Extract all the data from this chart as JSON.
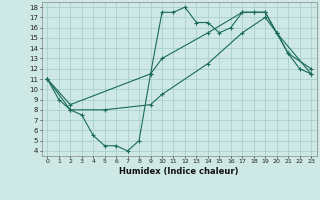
{
  "bg_color": "#cde8e5",
  "grid_color": "#aacfcc",
  "line_color": "#1a6b5a",
  "xlabel": "Humidex (Indice chaleur)",
  "xlim": [
    -0.5,
    23.5
  ],
  "ylim": [
    3.5,
    18.5
  ],
  "xticks": [
    0,
    1,
    2,
    3,
    4,
    5,
    6,
    7,
    8,
    9,
    10,
    11,
    12,
    13,
    14,
    15,
    16,
    17,
    18,
    19,
    20,
    21,
    22,
    23
  ],
  "yticks": [
    4,
    5,
    6,
    7,
    8,
    9,
    10,
    11,
    12,
    13,
    14,
    15,
    16,
    17,
    18
  ],
  "line1_x": [
    0,
    1,
    2,
    3,
    4,
    5,
    6,
    7,
    8,
    9,
    10,
    11,
    12,
    13,
    14,
    15,
    16,
    17,
    18,
    19,
    20,
    21,
    22,
    23
  ],
  "line1_y": [
    11.0,
    9.0,
    8.0,
    7.5,
    5.5,
    4.5,
    4.5,
    4.0,
    5.0,
    11.5,
    17.5,
    17.5,
    18.0,
    16.5,
    16.5,
    15.5,
    16.0,
    17.5,
    17.5,
    17.5,
    15.5,
    13.5,
    12.0,
    11.5
  ],
  "line2_x": [
    0,
    2,
    9,
    10,
    14,
    17,
    18,
    19,
    20,
    21,
    23
  ],
  "line2_y": [
    11.0,
    8.5,
    11.5,
    13.0,
    15.5,
    17.5,
    17.5,
    17.5,
    15.5,
    13.5,
    12.0
  ],
  "line3_x": [
    0,
    2,
    5,
    9,
    10,
    14,
    17,
    19,
    20,
    23
  ],
  "line3_y": [
    11.0,
    8.0,
    8.0,
    8.5,
    9.5,
    12.5,
    15.5,
    17.0,
    15.5,
    11.5
  ]
}
